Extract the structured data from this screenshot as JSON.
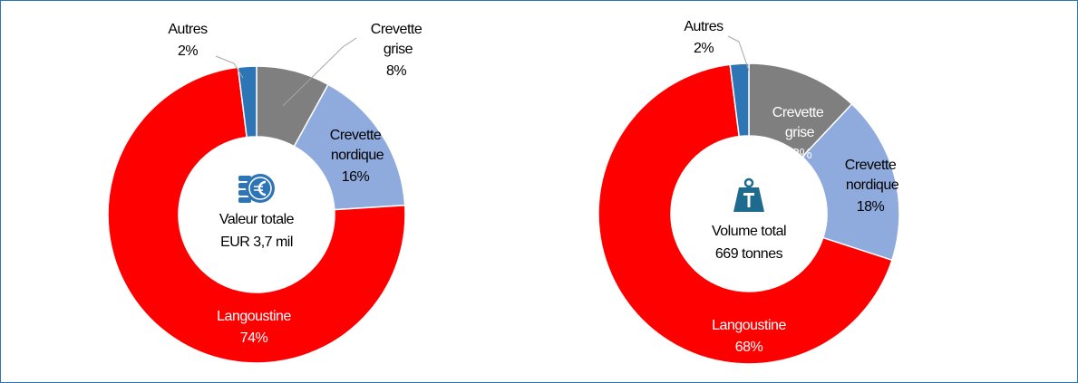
{
  "chart_data": [
    {
      "type": "donut",
      "categories": [
        "Crevette grise",
        "Crevette nordique",
        "Langoustine",
        "Autres"
      ],
      "values": [
        8,
        16,
        74,
        2
      ],
      "value_labels": [
        "8%",
        "16%",
        "74%",
        "2%"
      ],
      "colors": [
        "#7f7f7f",
        "#8faadc",
        "#ff0000",
        "#2e75b6"
      ],
      "center_text": [
        "Valeur totale",
        "EUR 3,7 mil"
      ]
    },
    {
      "type": "donut",
      "categories": [
        "Crevette grise",
        "Crevette nordique",
        "Langoustine",
        "Autres"
      ],
      "values": [
        12,
        18,
        68,
        2
      ],
      "value_labels": [
        "12%",
        "18%",
        "68%",
        "2%"
      ],
      "colors": [
        "#7f7f7f",
        "#8faadc",
        "#ff0000",
        "#2e75b6"
      ],
      "center_text": [
        "Volume total",
        "669 tonnes"
      ]
    }
  ]
}
